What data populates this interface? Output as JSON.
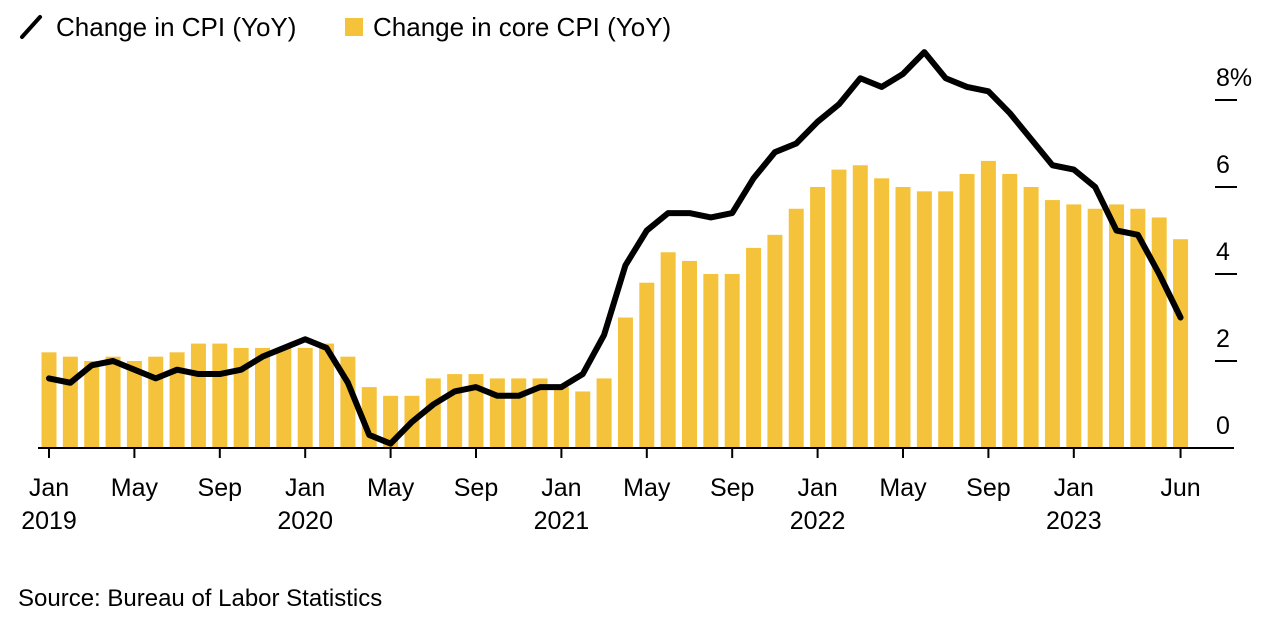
{
  "legend": {
    "cpi_label": "Change in CPI (YoY)",
    "core_label": "Change in core CPI (YoY)"
  },
  "source": "Source: Bureau of Labor Statistics",
  "colors": {
    "cpi_line": "#000000",
    "core_bars": "#F5C33B",
    "axis": "#000000"
  },
  "chart_data": {
    "type": "bar",
    "combo": "bar+line",
    "x_start": "2019-01",
    "x_end": "2023-06",
    "x_ticks": [
      {
        "month": "2019-01",
        "label": "Jan",
        "sublabel": "2019"
      },
      {
        "month": "2019-05",
        "label": "May",
        "sublabel": ""
      },
      {
        "month": "2019-09",
        "label": "Sep",
        "sublabel": ""
      },
      {
        "month": "2020-01",
        "label": "Jan",
        "sublabel": "2020"
      },
      {
        "month": "2020-05",
        "label": "May",
        "sublabel": ""
      },
      {
        "month": "2020-09",
        "label": "Sep",
        "sublabel": ""
      },
      {
        "month": "2021-01",
        "label": "Jan",
        "sublabel": "2021"
      },
      {
        "month": "2021-05",
        "label": "May",
        "sublabel": ""
      },
      {
        "month": "2021-09",
        "label": "Sep",
        "sublabel": ""
      },
      {
        "month": "2022-01",
        "label": "Jan",
        "sublabel": "2022"
      },
      {
        "month": "2022-05",
        "label": "May",
        "sublabel": ""
      },
      {
        "month": "2022-09",
        "label": "Sep",
        "sublabel": ""
      },
      {
        "month": "2023-01",
        "label": "Jan",
        "sublabel": "2023"
      },
      {
        "month": "2023-06",
        "label": "Jun",
        "sublabel": ""
      }
    ],
    "y_ticks": [
      {
        "value": 0,
        "label": "0"
      },
      {
        "value": 2,
        "label": "2"
      },
      {
        "value": 4,
        "label": "4"
      },
      {
        "value": 6,
        "label": "6"
      },
      {
        "value": 8,
        "label": "8%"
      }
    ],
    "ylim": [
      0,
      9.2
    ],
    "y_axis_position": "right",
    "grid": false,
    "legend_position": "top-left",
    "months": [
      "2019-01",
      "2019-02",
      "2019-03",
      "2019-04",
      "2019-05",
      "2019-06",
      "2019-07",
      "2019-08",
      "2019-09",
      "2019-10",
      "2019-11",
      "2019-12",
      "2020-01",
      "2020-02",
      "2020-03",
      "2020-04",
      "2020-05",
      "2020-06",
      "2020-07",
      "2020-08",
      "2020-09",
      "2020-10",
      "2020-11",
      "2020-12",
      "2021-01",
      "2021-02",
      "2021-03",
      "2021-04",
      "2021-05",
      "2021-06",
      "2021-07",
      "2021-08",
      "2021-09",
      "2021-10",
      "2021-11",
      "2021-12",
      "2022-01",
      "2022-02",
      "2022-03",
      "2022-04",
      "2022-05",
      "2022-06",
      "2022-07",
      "2022-08",
      "2022-09",
      "2022-10",
      "2022-11",
      "2022-12",
      "2023-01",
      "2023-02",
      "2023-03",
      "2023-04",
      "2023-05",
      "2023-06"
    ],
    "series": [
      {
        "name": "Change in core CPI (YoY)",
        "type": "bar",
        "values": [
          2.2,
          2.1,
          2.0,
          2.1,
          2.0,
          2.1,
          2.2,
          2.4,
          2.4,
          2.3,
          2.3,
          2.3,
          2.3,
          2.4,
          2.1,
          1.4,
          1.2,
          1.2,
          1.6,
          1.7,
          1.7,
          1.6,
          1.6,
          1.6,
          1.4,
          1.3,
          1.6,
          3.0,
          3.8,
          4.5,
          4.3,
          4.0,
          4.0,
          4.6,
          4.9,
          5.5,
          6.0,
          6.4,
          6.5,
          6.2,
          6.0,
          5.9,
          5.9,
          6.3,
          6.6,
          6.3,
          6.0,
          5.7,
          5.6,
          5.5,
          5.6,
          5.5,
          5.3,
          4.8
        ]
      },
      {
        "name": "Change in CPI (YoY)",
        "type": "line",
        "values": [
          1.6,
          1.5,
          1.9,
          2.0,
          1.8,
          1.6,
          1.8,
          1.7,
          1.7,
          1.8,
          2.1,
          2.3,
          2.5,
          2.3,
          1.5,
          0.3,
          0.1,
          0.6,
          1.0,
          1.3,
          1.4,
          1.2,
          1.2,
          1.4,
          1.4,
          1.7,
          2.6,
          4.2,
          5.0,
          5.4,
          5.4,
          5.3,
          5.4,
          6.2,
          6.8,
          7.0,
          7.5,
          7.9,
          8.5,
          8.3,
          8.6,
          9.1,
          8.5,
          8.3,
          8.2,
          7.7,
          7.1,
          6.5,
          6.4,
          6.0,
          5.0,
          4.9,
          4.0,
          3.0
        ]
      }
    ]
  }
}
